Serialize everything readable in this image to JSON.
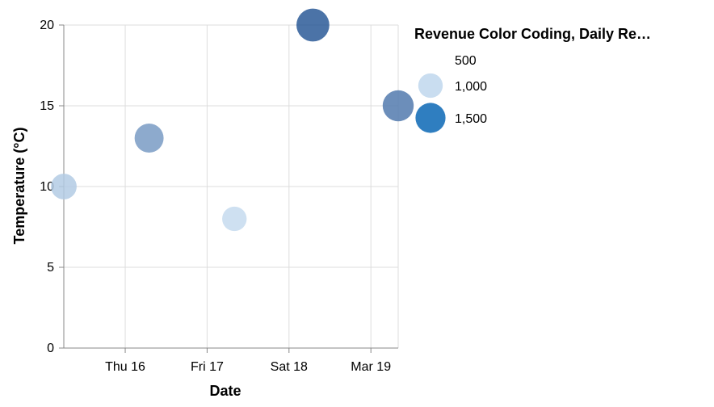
{
  "chart_data": {
    "type": "scatter",
    "xlabel": "Date",
    "ylabel": "Temperature (°C)",
    "x_ticks": [
      "Thu 16",
      "Fri 17",
      "Sat 18",
      "Mar 19"
    ],
    "y_ticks": [
      "0",
      "5",
      "10",
      "15",
      "20"
    ],
    "ylim": [
      0,
      20
    ],
    "xlim": [
      "2023-03-15T06:00",
      "2023-03-19T08:00"
    ],
    "grid": true,
    "legend": {
      "title": "Revenue Color Coding, Daily Re…",
      "position": "right",
      "entries": [
        {
          "label": "500",
          "value": 500
        },
        {
          "label": "1,000",
          "value": 1000
        },
        {
          "label": "1,500",
          "value": 1500
        }
      ]
    },
    "points": [
      {
        "date": "2023-03-15T06:00",
        "temperature": 10,
        "revenue": 1100
      },
      {
        "date": "2023-03-16T07:00",
        "temperature": 13,
        "revenue": 1400
      },
      {
        "date": "2023-03-17T08:00",
        "temperature": 8,
        "revenue": 1000
      },
      {
        "date": "2023-03-18T07:00",
        "temperature": 20,
        "revenue": 1800
      },
      {
        "date": "2023-03-19T08:00",
        "temperature": 15,
        "revenue": 1600
      }
    ],
    "colors": {
      "light": "#c6dbef",
      "dark": "#2b5a98",
      "legend_mid": "#c9ddf0",
      "legend_high": "#2f7ec0"
    }
  }
}
